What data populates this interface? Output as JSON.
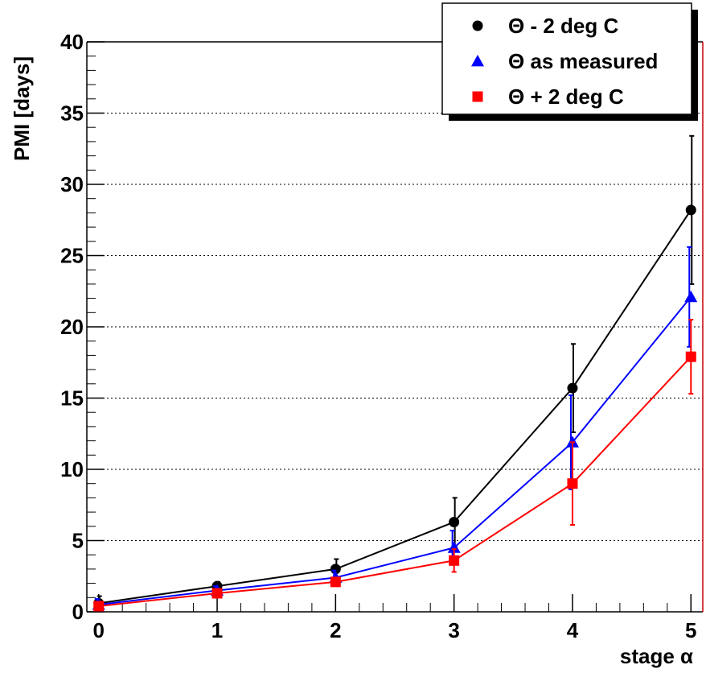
{
  "chart_data": {
    "type": "line",
    "xlabel": "stage α",
    "ylabel": "PMI [days]",
    "xlim": [
      -0.1,
      5.1
    ],
    "ylim": [
      0,
      40
    ],
    "x_ticks": [
      0,
      1,
      2,
      3,
      4,
      5
    ],
    "y_ticks": [
      0,
      5,
      10,
      15,
      20,
      25,
      30,
      35,
      40
    ],
    "grid": "horizontal-dotted",
    "legend_position": "top-right",
    "series": [
      {
        "name": "Θ - 2 deg C",
        "color": "#000000",
        "marker": "circle",
        "x": [
          0,
          1,
          2,
          3,
          4,
          5
        ],
        "y": [
          0.6,
          1.8,
          3.0,
          6.3,
          15.7,
          28.2
        ],
        "err": [
          0.5,
          0.3,
          0.7,
          1.7,
          3.1,
          5.2
        ]
      },
      {
        "name": "Θ as measured",
        "color": "#0000ff",
        "marker": "triangle",
        "x": [
          0,
          1,
          2,
          3,
          4,
          5
        ],
        "y": [
          0.5,
          1.5,
          2.4,
          4.5,
          11.9,
          22.1
        ],
        "err": [
          0.4,
          0.3,
          0.5,
          1.2,
          3.3,
          3.5
        ]
      },
      {
        "name": "Θ + 2 deg C",
        "color": "#ff0000",
        "marker": "square",
        "x": [
          0,
          1,
          2,
          3,
          4,
          5
        ],
        "y": [
          0.4,
          1.3,
          2.1,
          3.6,
          9.0,
          17.9
        ],
        "err": [
          0.3,
          0.2,
          0.3,
          0.8,
          2.9,
          2.6
        ]
      }
    ]
  }
}
